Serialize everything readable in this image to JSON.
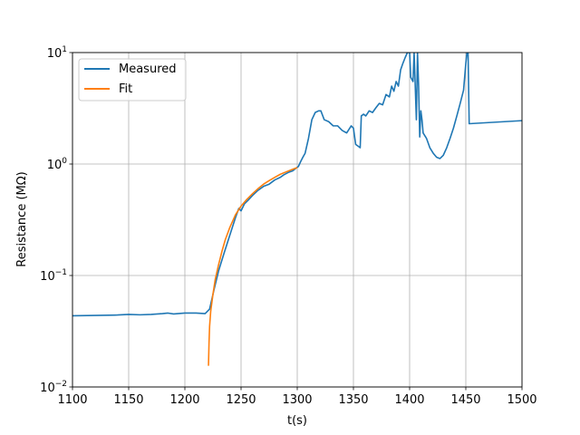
{
  "chart_data": {
    "type": "line",
    "xlabel": "t(s)",
    "ylabel": "Resistance (MΩ)",
    "xlim": [
      1100,
      1500
    ],
    "ylim": [
      0.01,
      10
    ],
    "yscale": "log",
    "grid": true,
    "legend_position": "top-left",
    "x_ticks": [
      {
        "value": 1100,
        "label": "1100"
      },
      {
        "value": 1150,
        "label": "1150"
      },
      {
        "value": 1200,
        "label": "1200"
      },
      {
        "value": 1250,
        "label": "1250"
      },
      {
        "value": 1300,
        "label": "1300"
      },
      {
        "value": 1350,
        "label": "1350"
      },
      {
        "value": 1400,
        "label": "1400"
      },
      {
        "value": 1450,
        "label": "1450"
      },
      {
        "value": 1500,
        "label": "1500"
      }
    ],
    "y_ticks": [
      {
        "value": 0.01,
        "base": "10",
        "exp": "−2"
      },
      {
        "value": 0.1,
        "base": "10",
        "exp": "−1"
      },
      {
        "value": 1,
        "base": "10",
        "exp": "0"
      },
      {
        "value": 10,
        "base": "10",
        "exp": "1"
      }
    ],
    "series": [
      {
        "name": "Measured",
        "color": "#1f77b4",
        "points": [
          [
            1100,
            0.0435
          ],
          [
            1120,
            0.0438
          ],
          [
            1140,
            0.0442
          ],
          [
            1150,
            0.0448
          ],
          [
            1160,
            0.0444
          ],
          [
            1170,
            0.0448
          ],
          [
            1180,
            0.0455
          ],
          [
            1185,
            0.046
          ],
          [
            1190,
            0.0452
          ],
          [
            1200,
            0.046
          ],
          [
            1210,
            0.046
          ],
          [
            1218,
            0.0455
          ],
          [
            1222,
            0.05
          ],
          [
            1226,
            0.075
          ],
          [
            1230,
            0.11
          ],
          [
            1235,
            0.16
          ],
          [
            1240,
            0.23
          ],
          [
            1245,
            0.33
          ],
          [
            1248,
            0.4
          ],
          [
            1250,
            0.38
          ],
          [
            1253,
            0.44
          ],
          [
            1256,
            0.47
          ],
          [
            1260,
            0.52
          ],
          [
            1265,
            0.58
          ],
          [
            1270,
            0.63
          ],
          [
            1275,
            0.66
          ],
          [
            1280,
            0.72
          ],
          [
            1285,
            0.76
          ],
          [
            1288,
            0.8
          ],
          [
            1292,
            0.84
          ],
          [
            1296,
            0.87
          ],
          [
            1299,
            0.92
          ],
          [
            1301,
            0.95
          ],
          [
            1303,
            1.05
          ],
          [
            1305,
            1.15
          ],
          [
            1307,
            1.25
          ],
          [
            1310,
            1.7
          ],
          [
            1313,
            2.5
          ],
          [
            1316,
            2.9
          ],
          [
            1319,
            3.0
          ],
          [
            1321,
            3.0
          ],
          [
            1324,
            2.5
          ],
          [
            1328,
            2.4
          ],
          [
            1332,
            2.2
          ],
          [
            1336,
            2.2
          ],
          [
            1340,
            2.0
          ],
          [
            1344,
            1.9
          ],
          [
            1348,
            2.2
          ],
          [
            1350,
            2.1
          ],
          [
            1352,
            1.5
          ],
          [
            1354,
            1.45
          ],
          [
            1356,
            1.4
          ],
          [
            1357,
            2.7
          ],
          [
            1359,
            2.8
          ],
          [
            1361,
            2.7
          ],
          [
            1364,
            3.0
          ],
          [
            1367,
            2.9
          ],
          [
            1370,
            3.2
          ],
          [
            1373,
            3.5
          ],
          [
            1376,
            3.4
          ],
          [
            1379,
            4.2
          ],
          [
            1382,
            4.0
          ],
          [
            1384,
            5.0
          ],
          [
            1386,
            4.5
          ],
          [
            1388,
            5.5
          ],
          [
            1390,
            5.0
          ],
          [
            1392,
            7.0
          ],
          [
            1394,
            8.0
          ],
          [
            1396,
            9.0
          ],
          [
            1398,
            10.0
          ],
          [
            1400,
            10.0
          ],
          [
            1401,
            6.0
          ],
          [
            1403,
            5.5
          ],
          [
            1404,
            10.0
          ],
          [
            1405,
            5.0
          ],
          [
            1406,
            2.5
          ],
          [
            1407,
            10.0
          ],
          [
            1408,
            5.0
          ],
          [
            1409,
            1.75
          ],
          [
            1410,
            3.0
          ],
          [
            1411,
            2.5
          ],
          [
            1412,
            1.9
          ],
          [
            1415,
            1.7
          ],
          [
            1418,
            1.4
          ],
          [
            1421,
            1.25
          ],
          [
            1424,
            1.15
          ],
          [
            1427,
            1.12
          ],
          [
            1430,
            1.2
          ],
          [
            1433,
            1.4
          ],
          [
            1436,
            1.7
          ],
          [
            1439,
            2.1
          ],
          [
            1442,
            2.7
          ],
          [
            1445,
            3.5
          ],
          [
            1448,
            4.6
          ],
          [
            1450,
            8.0
          ],
          [
            1451,
            10.0
          ],
          [
            1452,
            10.0
          ],
          [
            1453,
            2.3
          ],
          [
            1500,
            2.45
          ]
        ]
      },
      {
        "name": "Fit",
        "color": "#ff7f0e",
        "points": [
          [
            1221,
            0.0155
          ],
          [
            1221.5,
            0.025
          ],
          [
            1222,
            0.035
          ],
          [
            1223,
            0.048
          ],
          [
            1225,
            0.068
          ],
          [
            1227,
            0.092
          ],
          [
            1230,
            0.125
          ],
          [
            1233,
            0.165
          ],
          [
            1236,
            0.21
          ],
          [
            1240,
            0.27
          ],
          [
            1245,
            0.35
          ],
          [
            1250,
            0.42
          ],
          [
            1255,
            0.48
          ],
          [
            1260,
            0.54
          ],
          [
            1265,
            0.6
          ],
          [
            1270,
            0.66
          ],
          [
            1275,
            0.71
          ],
          [
            1280,
            0.76
          ],
          [
            1285,
            0.81
          ],
          [
            1290,
            0.85
          ],
          [
            1295,
            0.89
          ],
          [
            1300,
            0.93
          ]
        ]
      }
    ]
  }
}
